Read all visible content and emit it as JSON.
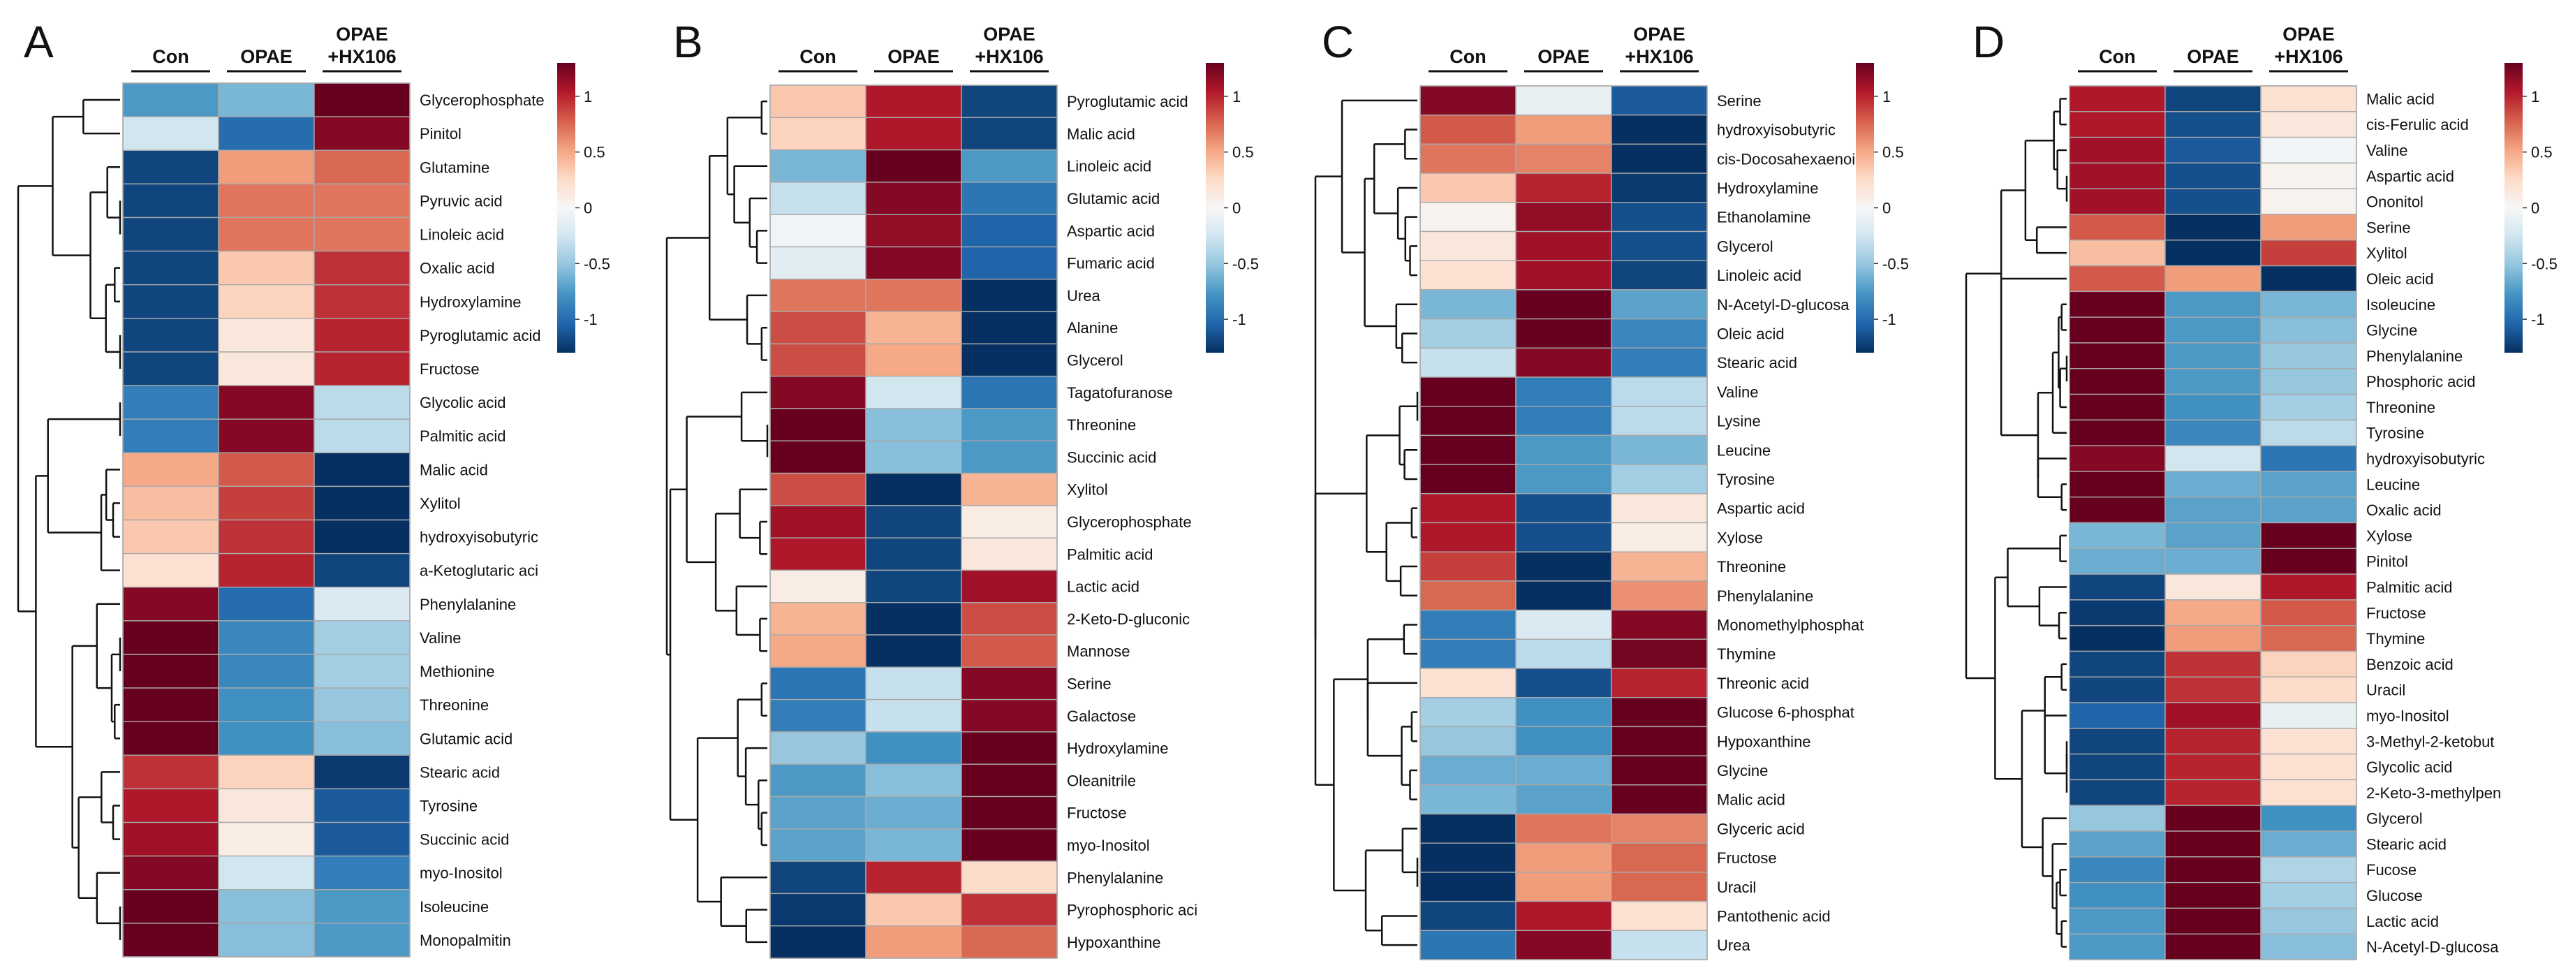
{
  "legend_scale": {
    "ticks": [
      1,
      0.5,
      0,
      -0.5,
      -1
    ],
    "tick_labels": [
      "1",
      "0.5",
      "0",
      "-0.5",
      "-1"
    ],
    "colors": [
      "#053061",
      "#2166ac",
      "#4393c3",
      "#92c5de",
      "#d1e5f0",
      "#f7f7f7",
      "#fddbc7",
      "#f4a582",
      "#d6604d",
      "#b2182b",
      "#67001f"
    ]
  },
  "chart_data": [
    {
      "type": "heatmap",
      "panel_label": "A",
      "categories": [
        "Con",
        "OPAE",
        "OPAE\n+HX106"
      ],
      "rows": [
        {
          "name": "Glycerophosphate",
          "values": [
            -0.75,
            -0.6,
            1.3
          ]
        },
        {
          "name": "Pinitol",
          "values": [
            -0.25,
            -1.0,
            1.2
          ]
        },
        {
          "name": "Glutamine",
          "values": [
            -1.2,
            0.55,
            0.75
          ]
        },
        {
          "name": "Pyruvic acid",
          "values": [
            -1.2,
            0.7,
            0.7
          ]
        },
        {
          "name": "Linoleic acid",
          "values": [
            -1.2,
            0.7,
            0.7
          ]
        },
        {
          "name": "Oxalic acid",
          "values": [
            -1.2,
            0.35,
            0.95
          ]
        },
        {
          "name": "Hydroxylamine",
          "values": [
            -1.2,
            0.3,
            0.95
          ]
        },
        {
          "name": "Pyroglutamic acid",
          "values": [
            -1.2,
            0.15,
            1.0
          ]
        },
        {
          "name": "Fructose",
          "values": [
            -1.2,
            0.15,
            1.0
          ]
        },
        {
          "name": "Glycolic acid",
          "values": [
            -0.9,
            1.2,
            -0.35
          ]
        },
        {
          "name": "Palmitic acid",
          "values": [
            -0.9,
            1.2,
            -0.35
          ]
        },
        {
          "name": "Malic acid",
          "values": [
            0.5,
            0.8,
            -1.3
          ]
        },
        {
          "name": "Xylitol",
          "values": [
            0.4,
            0.9,
            -1.3
          ]
        },
        {
          "name": "hydroxyisobutyric",
          "values": [
            0.35,
            0.95,
            -1.3
          ]
        },
        {
          "name": "a-Ketoglutaric aci",
          "values": [
            0.2,
            1.0,
            -1.2
          ]
        },
        {
          "name": "Phenylalanine",
          "values": [
            1.2,
            -1.0,
            -0.2
          ]
        },
        {
          "name": "Valine",
          "values": [
            1.3,
            -0.85,
            -0.45
          ]
        },
        {
          "name": "Methionine",
          "values": [
            1.3,
            -0.85,
            -0.45
          ]
        },
        {
          "name": "Threonine",
          "values": [
            1.3,
            -0.8,
            -0.5
          ]
        },
        {
          "name": "Glutamic acid",
          "values": [
            1.3,
            -0.8,
            -0.55
          ]
        },
        {
          "name": "Stearic acid",
          "values": [
            0.95,
            0.3,
            -1.25
          ]
        },
        {
          "name": "Tyrosine",
          "values": [
            1.05,
            0.15,
            -1.1
          ]
        },
        {
          "name": "Succinic acid",
          "values": [
            1.1,
            0.1,
            -1.1
          ]
        },
        {
          "name": "myo-Inositol",
          "values": [
            1.2,
            -0.25,
            -0.9
          ]
        },
        {
          "name": "Isoleucine",
          "values": [
            1.3,
            -0.55,
            -0.75
          ]
        },
        {
          "name": "Monopalmitin",
          "values": [
            1.3,
            -0.55,
            -0.75
          ]
        }
      ]
    },
    {
      "type": "heatmap",
      "panel_label": "B",
      "categories": [
        "Con",
        "OPAE",
        "OPAE\n+HX106"
      ],
      "rows": [
        {
          "name": "Pyroglutamic acid",
          "values": [
            0.35,
            1.05,
            -1.2
          ]
        },
        {
          "name": "Malic acid",
          "values": [
            0.3,
            1.05,
            -1.2
          ]
        },
        {
          "name": "Linoleic acid",
          "values": [
            -0.6,
            1.3,
            -0.75
          ]
        },
        {
          "name": "Glutamic acid",
          "values": [
            -0.3,
            1.2,
            -0.95
          ]
        },
        {
          "name": "Aspartic acid",
          "values": [
            -0.05,
            1.15,
            -1.05
          ]
        },
        {
          "name": "Fumaric acid",
          "values": [
            -0.15,
            1.2,
            -1.05
          ]
        },
        {
          "name": "Urea",
          "values": [
            0.7,
            0.7,
            -1.3
          ]
        },
        {
          "name": "Alanine",
          "values": [
            0.85,
            0.45,
            -1.3
          ]
        },
        {
          "name": "Glycerol",
          "values": [
            0.85,
            0.5,
            -1.3
          ]
        },
        {
          "name": "Tagatofuranose",
          "values": [
            1.2,
            -0.25,
            -0.95
          ]
        },
        {
          "name": "Threonine",
          "values": [
            1.3,
            -0.55,
            -0.75
          ]
        },
        {
          "name": "Succinic acid",
          "values": [
            1.3,
            -0.55,
            -0.75
          ]
        },
        {
          "name": "Xylitol",
          "values": [
            0.85,
            -1.3,
            0.45
          ]
        },
        {
          "name": "Glycerophosphate",
          "values": [
            1.1,
            -1.2,
            0.1
          ]
        },
        {
          "name": "Palmitic acid",
          "values": [
            1.05,
            -1.2,
            0.15
          ]
        },
        {
          "name": "Lactic acid",
          "values": [
            0.1,
            -1.2,
            1.1
          ]
        },
        {
          "name": "2-Keto-D-gluconic",
          "values": [
            0.45,
            -1.3,
            0.85
          ]
        },
        {
          "name": "Mannose",
          "values": [
            0.5,
            -1.3,
            0.8
          ]
        },
        {
          "name": "Serine",
          "values": [
            -0.95,
            -0.3,
            1.2
          ]
        },
        {
          "name": "Galactose",
          "values": [
            -0.9,
            -0.3,
            1.2
          ]
        },
        {
          "name": "Hydroxylamine",
          "values": [
            -0.5,
            -0.8,
            1.3
          ]
        },
        {
          "name": "Oleanitrile",
          "values": [
            -0.75,
            -0.55,
            1.3
          ]
        },
        {
          "name": "Fructose",
          "values": [
            -0.7,
            -0.65,
            1.3
          ]
        },
        {
          "name": "myo-Inositol",
          "values": [
            -0.7,
            -0.6,
            1.3
          ]
        },
        {
          "name": "Phenylalanine",
          "values": [
            -1.2,
            1.0,
            0.25
          ]
        },
        {
          "name": "Pyrophosphoric aci",
          "values": [
            -1.25,
            0.35,
            0.95
          ]
        },
        {
          "name": "Hypoxanthine",
          "values": [
            -1.3,
            0.55,
            0.75
          ]
        }
      ]
    },
    {
      "type": "heatmap",
      "panel_label": "C",
      "categories": [
        "Con",
        "OPAE",
        "OPAE\n+HX106"
      ],
      "rows": [
        {
          "name": "Serine",
          "values": [
            1.2,
            -0.1,
            -1.1
          ]
        },
        {
          "name": "hydroxyisobutyric",
          "values": [
            0.8,
            0.55,
            -1.3
          ]
        },
        {
          "name": "cis-Docosahexaenoi",
          "values": [
            0.7,
            0.65,
            -1.3
          ]
        },
        {
          "name": "Hydroxylamine",
          "values": [
            0.35,
            1.0,
            -1.25
          ]
        },
        {
          "name": "Ethanolamine",
          "values": [
            0.05,
            1.15,
            -1.15
          ]
        },
        {
          "name": "Glycerol",
          "values": [
            0.15,
            1.1,
            -1.15
          ]
        },
        {
          "name": "Linoleic acid",
          "values": [
            0.2,
            1.1,
            -1.2
          ]
        },
        {
          "name": "N-Acetyl-D-glucosa",
          "values": [
            -0.6,
            1.3,
            -0.7
          ]
        },
        {
          "name": "Oleic acid",
          "values": [
            -0.45,
            1.3,
            -0.85
          ]
        },
        {
          "name": "Stearic acid",
          "values": [
            -0.3,
            1.2,
            -0.9
          ]
        },
        {
          "name": "Valine",
          "values": [
            1.3,
            -0.9,
            -0.35
          ]
        },
        {
          "name": "Lysine",
          "values": [
            1.3,
            -0.9,
            -0.35
          ]
        },
        {
          "name": "Leucine",
          "values": [
            1.3,
            -0.75,
            -0.6
          ]
        },
        {
          "name": "Tyrosine",
          "values": [
            1.3,
            -0.75,
            -0.45
          ]
        },
        {
          "name": "Aspartic acid",
          "values": [
            1.05,
            -1.15,
            0.15
          ]
        },
        {
          "name": "Xylose",
          "values": [
            1.05,
            -1.15,
            0.1
          ]
        },
        {
          "name": "Threonine",
          "values": [
            0.9,
            -1.3,
            0.45
          ]
        },
        {
          "name": "Phenylalanine",
          "values": [
            0.75,
            -1.3,
            0.6
          ]
        },
        {
          "name": "Monomethylphosphat",
          "values": [
            -0.9,
            -0.2,
            1.2
          ]
        },
        {
          "name": "Thymine",
          "values": [
            -0.9,
            -0.35,
            1.25
          ]
        },
        {
          "name": "Threonic acid",
          "values": [
            0.2,
            -1.15,
            1.0
          ]
        },
        {
          "name": "Glucose 6-phosphat",
          "values": [
            -0.45,
            -0.8,
            1.3
          ]
        },
        {
          "name": "Hypoxanthine",
          "values": [
            -0.5,
            -0.8,
            1.3
          ]
        },
        {
          "name": "Glycine",
          "values": [
            -0.65,
            -0.65,
            1.3
          ]
        },
        {
          "name": "Malic acid",
          "values": [
            -0.6,
            -0.7,
            1.3
          ]
        },
        {
          "name": "Glyceric acid",
          "values": [
            -1.3,
            0.7,
            0.65
          ]
        },
        {
          "name": "Fructose",
          "values": [
            -1.3,
            0.55,
            0.75
          ]
        },
        {
          "name": "Uracil",
          "values": [
            -1.3,
            0.55,
            0.75
          ]
        },
        {
          "name": "Pantothenic acid",
          "values": [
            -1.2,
            1.05,
            0.2
          ]
        },
        {
          "name": "Urea",
          "values": [
            -0.95,
            1.2,
            -0.3
          ]
        }
      ]
    },
    {
      "type": "heatmap",
      "panel_label": "D",
      "categories": [
        "Con",
        "OPAE",
        "OPAE\n+HX106"
      ],
      "rows": [
        {
          "name": "Malic acid",
          "values": [
            1.05,
            -1.2,
            0.2
          ]
        },
        {
          "name": "cis-Ferulic acid",
          "values": [
            1.05,
            -1.15,
            0.15
          ]
        },
        {
          "name": "Valine",
          "values": [
            1.1,
            -1.1,
            -0.05
          ]
        },
        {
          "name": "Aspartic acid",
          "values": [
            1.1,
            -1.15,
            0.05
          ]
        },
        {
          "name": "Ononitol",
          "values": [
            1.1,
            -1.15,
            0.05
          ]
        },
        {
          "name": "Serine",
          "values": [
            0.8,
            -1.3,
            0.55
          ]
        },
        {
          "name": "Xylitol",
          "values": [
            0.4,
            -1.3,
            0.9
          ]
        },
        {
          "name": "Oleic acid",
          "values": [
            0.8,
            0.55,
            -1.3
          ]
        },
        {
          "name": "Isoleucine",
          "values": [
            1.3,
            -0.75,
            -0.6
          ]
        },
        {
          "name": "Glycine",
          "values": [
            1.3,
            -0.75,
            -0.55
          ]
        },
        {
          "name": "Phenylalanine",
          "values": [
            1.3,
            -0.75,
            -0.5
          ]
        },
        {
          "name": "Phosphoric acid",
          "values": [
            1.3,
            -0.75,
            -0.5
          ]
        },
        {
          "name": "Threonine",
          "values": [
            1.3,
            -0.8,
            -0.45
          ]
        },
        {
          "name": "Tyrosine",
          "values": [
            1.3,
            -0.85,
            -0.35
          ]
        },
        {
          "name": "hydroxyisobutyric",
          "values": [
            1.2,
            -0.25,
            -0.95
          ]
        },
        {
          "name": "Leucine",
          "values": [
            1.3,
            -0.65,
            -0.7
          ]
        },
        {
          "name": "Oxalic acid",
          "values": [
            1.3,
            -0.7,
            -0.7
          ]
        },
        {
          "name": "Xylose",
          "values": [
            -0.6,
            -0.7,
            1.3
          ]
        },
        {
          "name": "Pinitol",
          "values": [
            -0.65,
            -0.65,
            1.3
          ]
        },
        {
          "name": "Palmitic acid",
          "values": [
            -1.2,
            0.15,
            1.05
          ]
        },
        {
          "name": "Fructose",
          "values": [
            -1.25,
            0.5,
            0.8
          ]
        },
        {
          "name": "Thymine",
          "values": [
            -1.3,
            0.55,
            0.75
          ]
        },
        {
          "name": "Benzoic acid",
          "values": [
            -1.2,
            0.95,
            0.3
          ]
        },
        {
          "name": "Uracil",
          "values": [
            -1.2,
            0.95,
            0.25
          ]
        },
        {
          "name": "myo-Inositol",
          "values": [
            -1.05,
            1.1,
            -0.1
          ]
        },
        {
          "name": "3-Methyl-2-ketobut",
          "values": [
            -1.2,
            1.0,
            0.2
          ]
        },
        {
          "name": "Glycolic acid",
          "values": [
            -1.2,
            1.0,
            0.2
          ]
        },
        {
          "name": "2-Keto-3-methylpen",
          "values": [
            -1.2,
            1.0,
            0.2
          ]
        },
        {
          "name": "Glycerol",
          "values": [
            -0.5,
            1.3,
            -0.8
          ]
        },
        {
          "name": "Stearic acid",
          "values": [
            -0.7,
            1.3,
            -0.65
          ]
        },
        {
          "name": "Fucose",
          "values": [
            -0.85,
            1.3,
            -0.4
          ]
        },
        {
          "name": "Glucose",
          "values": [
            -0.8,
            1.3,
            -0.45
          ]
        },
        {
          "name": "Lactic acid",
          "values": [
            -0.75,
            1.3,
            -0.5
          ]
        },
        {
          "name": "N-Acetyl-D-glucosa",
          "values": [
            -0.75,
            1.3,
            -0.55
          ]
        }
      ]
    }
  ]
}
